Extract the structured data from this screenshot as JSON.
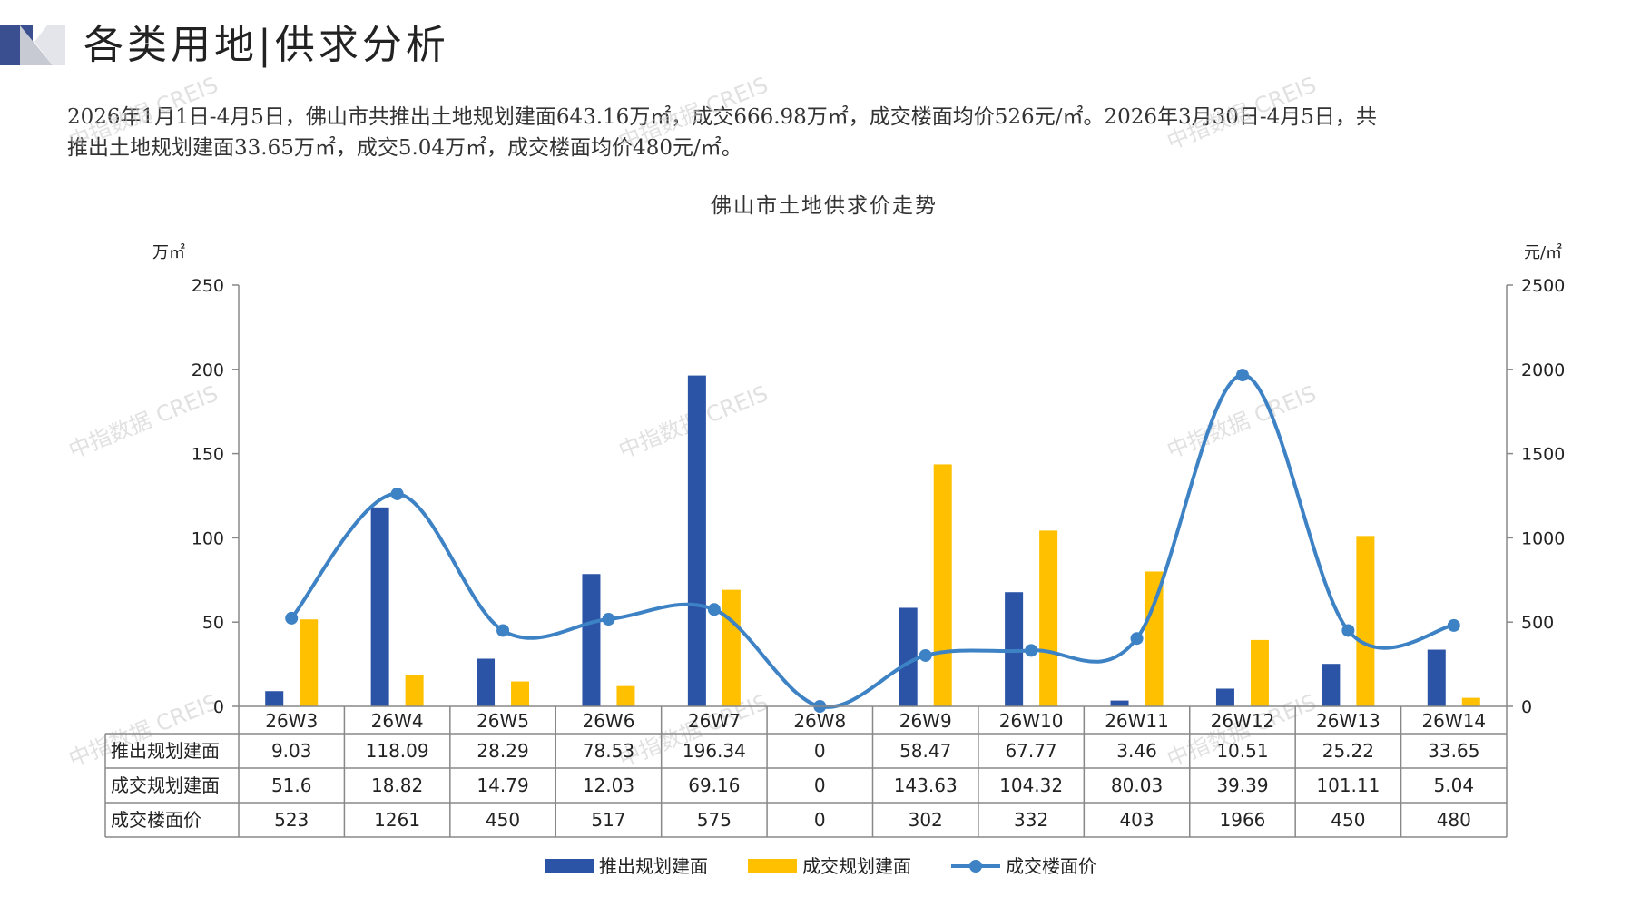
{
  "header": {
    "title": "各类用地|供求分析"
  },
  "summary": {
    "line1": "2026年1月1日-4月5日，佛山市共推出土地规划建面643.16万㎡，成交666.98万㎡，成交楼面均价526元/㎡。2026年3月30日-4月5日，共",
    "line2": "推出土地规划建面33.65万㎡，成交5.04万㎡，成交楼面均价480元/㎡。"
  },
  "watermark": "中指数据 CREIS",
  "colors": {
    "supply": "#2b54a6",
    "deal": "#ffc000",
    "price": "#3d82c4",
    "deco_dark": "#3a4f8f",
    "deco_light": "#c8cad3"
  },
  "chart_data": {
    "type": "bar",
    "title": "佛山市土地供求价走势",
    "left_unit": "万㎡",
    "right_unit": "元/㎡",
    "ylim": [
      0,
      250
    ],
    "y2lim": [
      0,
      2500
    ],
    "y_ticks": [
      0,
      50,
      100,
      150,
      200,
      250
    ],
    "y2_ticks": [
      0,
      500,
      1000,
      1500,
      2000,
      2500
    ],
    "categories": [
      "26W3",
      "26W4",
      "26W5",
      "26W6",
      "26W7",
      "26W8",
      "26W9",
      "26W10",
      "26W11",
      "26W12",
      "26W13",
      "26W14"
    ],
    "series": [
      {
        "name": "推出规划建面",
        "type": "bar",
        "axis": "left",
        "values": [
          9.03,
          118.09,
          28.29,
          78.53,
          196.34,
          0,
          58.47,
          67.77,
          3.46,
          10.51,
          25.22,
          33.65
        ],
        "labels": [
          "9.03",
          "118.09",
          "28.29",
          "78.53",
          "196.34",
          "0",
          "58.47",
          "67.77",
          "3.46",
          "10.51",
          "25.22",
          "33.65"
        ]
      },
      {
        "name": "成交规划建面",
        "type": "bar",
        "axis": "left",
        "values": [
          51.6,
          18.82,
          14.79,
          12.03,
          69.16,
          0,
          143.63,
          104.32,
          80.03,
          39.39,
          101.11,
          5.04
        ],
        "labels": [
          "51.6",
          "18.82",
          "14.79",
          "12.03",
          "69.16",
          "0",
          "143.63",
          "104.32",
          "80.03",
          "39.39",
          "101.11",
          "5.04"
        ]
      },
      {
        "name": "成交楼面价",
        "type": "line",
        "axis": "right",
        "values": [
          523,
          1261,
          450,
          517,
          575,
          0,
          302,
          332,
          403,
          1966,
          450,
          480
        ],
        "labels": [
          "523",
          "1261",
          "450",
          "517",
          "575",
          "0",
          "302",
          "332",
          "403",
          "1966",
          "450",
          "480"
        ]
      }
    ],
    "legend": "bottom",
    "grid": false
  }
}
